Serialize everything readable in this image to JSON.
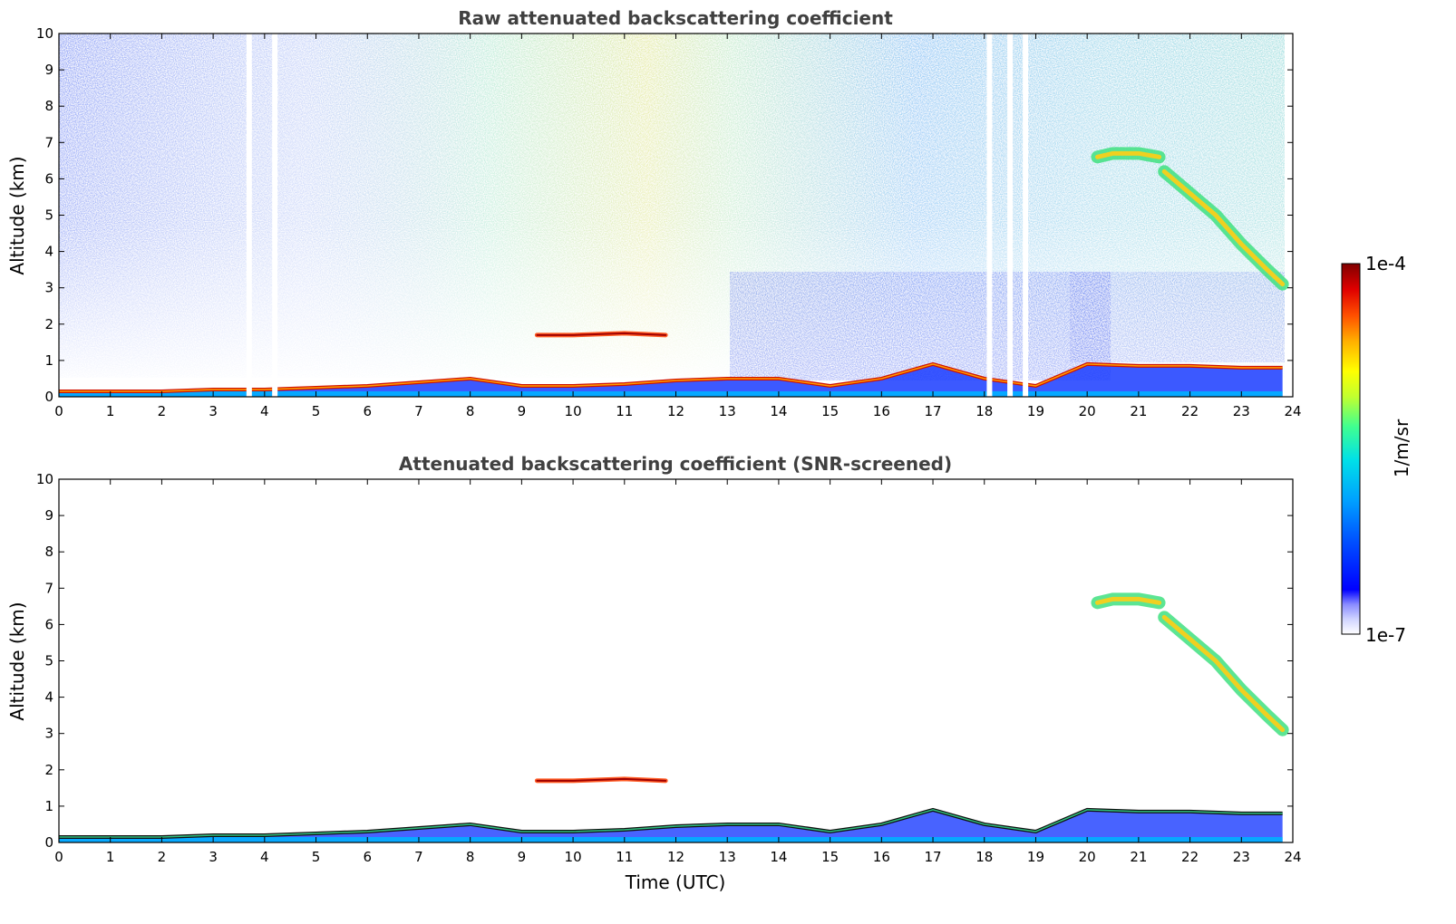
{
  "chart_data": [
    {
      "type": "heatmap",
      "title": "Raw attenuated backscattering coefficient",
      "xlabel": "",
      "ylabel": "Altitude (km)",
      "xlim": [
        0,
        24
      ],
      "ylim": [
        0,
        10
      ],
      "xticks": [
        "0",
        "1",
        "2",
        "3",
        "4",
        "5",
        "6",
        "7",
        "8",
        "9",
        "10",
        "11",
        "12",
        "13",
        "14",
        "15",
        "16",
        "17",
        "18",
        "19",
        "20",
        "21",
        "22",
        "23",
        "24"
      ],
      "yticks": [
        "0",
        "1",
        "2",
        "3",
        "4",
        "5",
        "6",
        "7",
        "8",
        "9",
        "10"
      ],
      "features": [
        {
          "type": "boundary_layer_top",
          "x": [
            0,
            1,
            2,
            3,
            4,
            5,
            6,
            7,
            7.5,
            8,
            9,
            10,
            11,
            12,
            13,
            14,
            15,
            16,
            17,
            18,
            19,
            20,
            21,
            22,
            23,
            23.8
          ],
          "y": [
            0.15,
            0.15,
            0.15,
            0.2,
            0.2,
            0.25,
            0.3,
            0.4,
            0.45,
            0.5,
            0.3,
            0.3,
            0.35,
            0.45,
            0.5,
            0.5,
            0.3,
            0.5,
            0.9,
            0.5,
            0.3,
            0.9,
            0.85,
            0.85,
            0.8,
            0.8
          ]
        },
        {
          "type": "cirrus",
          "x": [
            20.2,
            20.5,
            21,
            21.4
          ],
          "y": [
            6.6,
            6.7,
            6.7,
            6.6
          ]
        },
        {
          "type": "cirrus",
          "x": [
            21.5,
            22,
            22.5,
            23,
            23.5,
            23.8
          ],
          "y": [
            6.2,
            5.6,
            5.0,
            4.2,
            3.5,
            3.1
          ]
        },
        {
          "type": "aerosol_layer",
          "x": [
            9.3,
            10,
            11,
            11.8
          ],
          "y": [
            1.7,
            1.7,
            1.75,
            1.7
          ]
        }
      ],
      "gaps_utc": [
        3.7,
        4.2,
        18.1,
        18.5,
        18.8
      ]
    },
    {
      "type": "heatmap",
      "title": "Attenuated backscattering coefficient (SNR-screened)",
      "xlabel": "Time (UTC)",
      "ylabel": "Altitude (km)",
      "xlim": [
        0,
        24
      ],
      "ylim": [
        0,
        10
      ],
      "xticks": [
        "0",
        "1",
        "2",
        "3",
        "4",
        "5",
        "6",
        "7",
        "8",
        "9",
        "10",
        "11",
        "12",
        "13",
        "14",
        "15",
        "16",
        "17",
        "18",
        "19",
        "20",
        "21",
        "22",
        "23",
        "24"
      ],
      "yticks": [
        "0",
        "1",
        "2",
        "3",
        "4",
        "5",
        "6",
        "7",
        "8",
        "9",
        "10"
      ]
    }
  ],
  "colorbar": {
    "max_label": "1e-4",
    "min_label": "1e-7",
    "units": "1/m/sr",
    "scale": "log",
    "colormap": [
      "#ffffff",
      "#d0d4ff",
      "#8a8cff",
      "#0000ff",
      "#0050ff",
      "#00a0ff",
      "#00e0e8",
      "#40ff90",
      "#c0ff30",
      "#ffff00",
      "#ffb000",
      "#ff5000",
      "#e00000",
      "#800000"
    ]
  }
}
